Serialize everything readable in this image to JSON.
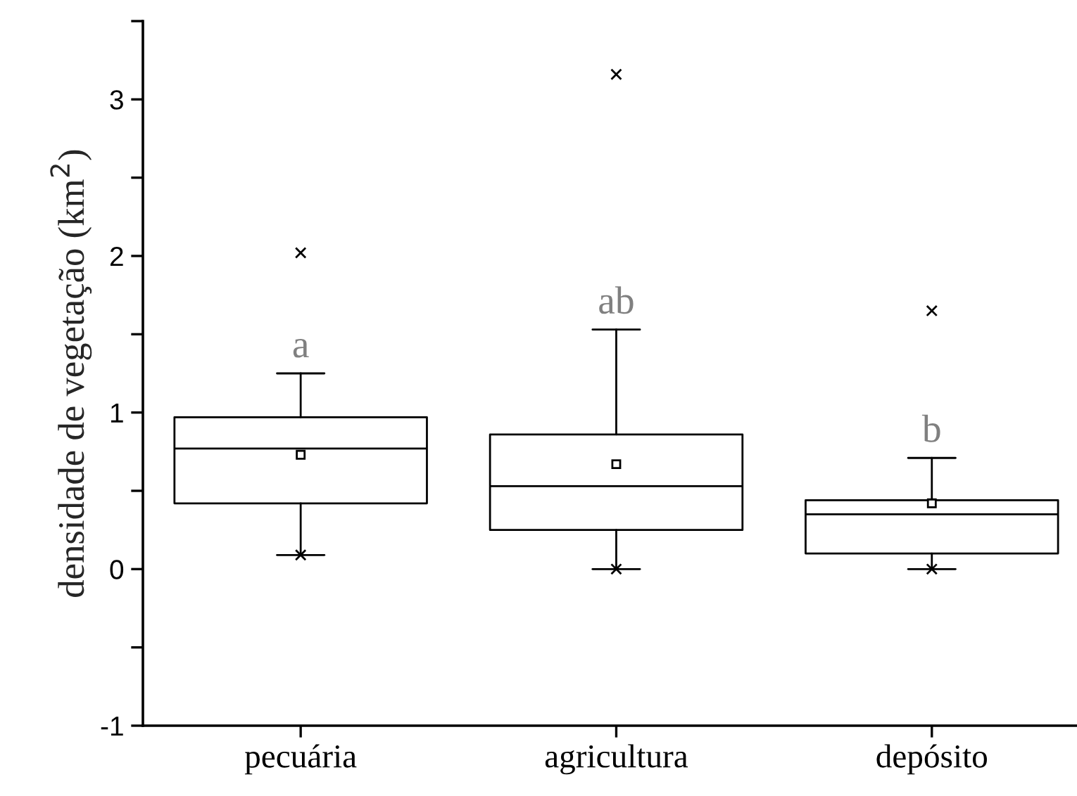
{
  "chart_data": {
    "type": "box",
    "ylabel": "densidade de vegetação (km$^{2}$)",
    "categories": [
      "pecuária",
      "agricultura",
      "depósito"
    ],
    "boxes": [
      {
        "low": 0.09,
        "q1": 0.42,
        "median": 0.77,
        "q3": 0.97,
        "high": 1.25,
        "mean": 0.73,
        "outliers": [
          0.09,
          2.02
        ]
      },
      {
        "low": 0.0,
        "q1": 0.25,
        "median": 0.53,
        "q3": 0.86,
        "high": 1.53,
        "mean": 0.67,
        "outliers": [
          0.0,
          3.16
        ]
      },
      {
        "low": 0.0,
        "q1": 0.1,
        "median": 0.35,
        "q3": 0.44,
        "high": 0.71,
        "mean": 0.42,
        "outliers": [
          0.0,
          1.65
        ]
      }
    ],
    "ylim": [
      -1,
      3.5
    ],
    "yticks": [
      -1,
      {
        "value": -0.5,
        "label": null
      },
      0,
      {
        "value": 0.5,
        "label": null
      },
      1,
      {
        "value": 1.5,
        "label": null
      },
      2,
      {
        "value": 2.5,
        "label": null
      },
      3,
      {
        "value": 3.5,
        "label": null
      }
    ],
    "annotations": [
      "a",
      "ab",
      "b"
    ],
    "grid": false
  }
}
